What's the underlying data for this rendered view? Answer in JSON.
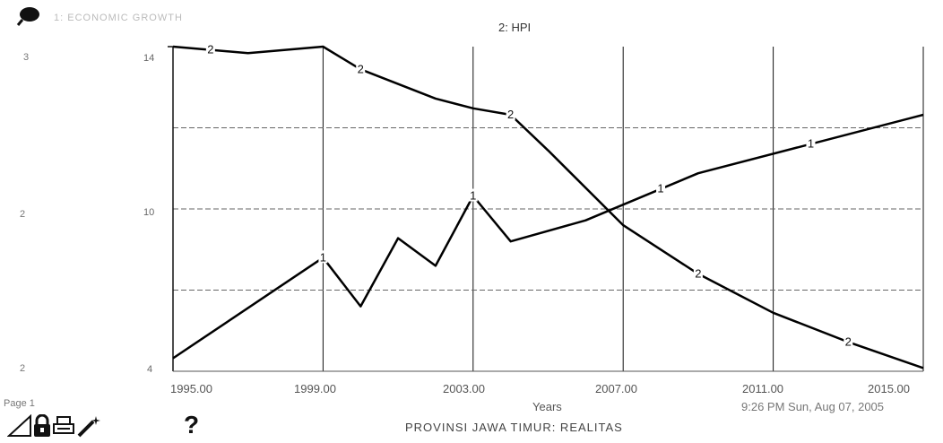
{
  "header": {
    "magnifier_icon": "magnifier-icon",
    "legend_1": "1: ECONOMIC GROWTH",
    "legend_2": "2: HPI"
  },
  "chart_data": {
    "type": "line",
    "title": "",
    "xlabel": "Years",
    "x_ticks": [
      1995,
      1999,
      2003,
      2007,
      2011,
      2015
    ],
    "x_tick_labels": [
      "1995.00",
      "1999.00",
      "2003.00",
      "2007.00",
      "2011.00",
      "2015.00"
    ],
    "xlim": [
      1995,
      2015
    ],
    "axes": {
      "series_1": {
        "tick_labels": [
          "3",
          "2",
          "2"
        ],
        "ylim": [
          1,
          3
        ]
      },
      "series_2": {
        "tick_labels": [
          "14",
          "10",
          "4"
        ]
      }
    },
    "grid": true,
    "series": [
      {
        "name": "1",
        "color": "#000000",
        "points": [
          [
            1995,
            1.08
          ],
          [
            1999,
            1.7
          ],
          [
            2000,
            1.4
          ],
          [
            2001,
            1.82
          ],
          [
            2002,
            1.65
          ],
          [
            2003,
            2.08
          ],
          [
            2004,
            1.8
          ],
          [
            2006,
            1.93
          ],
          [
            2009,
            2.22
          ],
          [
            2015,
            2.58
          ]
        ],
        "marker_x": [
          1999,
          2003,
          2008,
          2012
        ]
      },
      {
        "name": "2",
        "color": "#000000",
        "points": [
          [
            1995,
            14.0
          ],
          [
            1997,
            13.8
          ],
          [
            1999,
            14.0
          ],
          [
            2000,
            13.3
          ],
          [
            2002,
            12.4
          ],
          [
            2003,
            12.1
          ],
          [
            2004,
            11.9
          ],
          [
            2005,
            10.8
          ],
          [
            2007,
            8.5
          ],
          [
            2009,
            7.0
          ],
          [
            2011,
            5.8
          ],
          [
            2013,
            4.9
          ],
          [
            2015,
            4.1
          ]
        ],
        "marker_x": [
          1996,
          2000,
          2004,
          2009,
          2013
        ]
      }
    ]
  },
  "footer": {
    "page_label": "Page 1",
    "timestamp": "9:26 PM  Sun, Aug 07, 2005",
    "subtitle": "PROVINSI JAWA TIMUR: REALITAS",
    "help_label": "?",
    "icons": [
      "page-corner-icon",
      "lock-icon",
      "printer-icon",
      "magic-wand-icon"
    ]
  }
}
